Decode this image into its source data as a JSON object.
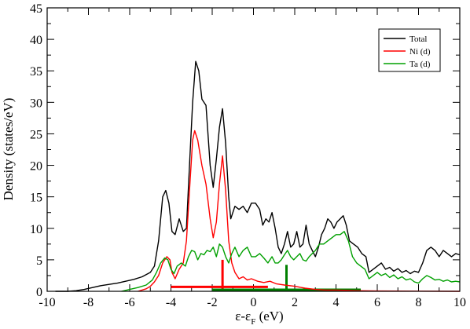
{
  "chart_data": {
    "type": "line",
    "xlim": [
      -10,
      10
    ],
    "ylim": [
      0,
      45
    ],
    "x_ticks": [
      -10,
      -8,
      -6,
      -4,
      -2,
      0,
      2,
      4,
      6,
      8,
      10
    ],
    "y_ticks": [
      0,
      5,
      10,
      15,
      20,
      25,
      30,
      35,
      40,
      45
    ],
    "xlabel": {
      "main": "ε-ε",
      "sub": "F",
      "tail": " (eV)"
    },
    "ylabel": "Density (states/eV)",
    "grid": false,
    "legend_position": "top-right",
    "series": [
      {
        "name": "Total",
        "color": "#000000",
        "points": [
          [
            -9.6,
            0
          ],
          [
            -9,
            0
          ],
          [
            -8.6,
            0.1
          ],
          [
            -8.2,
            0.3
          ],
          [
            -7.8,
            0.6
          ],
          [
            -7.4,
            0.9
          ],
          [
            -7.0,
            1.1
          ],
          [
            -6.6,
            1.3
          ],
          [
            -6.2,
            1.6
          ],
          [
            -5.8,
            1.9
          ],
          [
            -5.4,
            2.3
          ],
          [
            -5.0,
            3.0
          ],
          [
            -4.8,
            4.0
          ],
          [
            -4.6,
            8.0
          ],
          [
            -4.4,
            15.0
          ],
          [
            -4.25,
            16.0
          ],
          [
            -4.1,
            14.0
          ],
          [
            -3.95,
            9.5
          ],
          [
            -3.8,
            9.0
          ],
          [
            -3.6,
            11.5
          ],
          [
            -3.4,
            9.5
          ],
          [
            -3.25,
            10.0
          ],
          [
            -3.1,
            20.0
          ],
          [
            -2.95,
            30.0
          ],
          [
            -2.8,
            36.5
          ],
          [
            -2.65,
            35.0
          ],
          [
            -2.5,
            30.5
          ],
          [
            -2.3,
            29.5
          ],
          [
            -2.1,
            20.0
          ],
          [
            -1.95,
            16.5
          ],
          [
            -1.8,
            21.0
          ],
          [
            -1.65,
            26.0
          ],
          [
            -1.5,
            29.0
          ],
          [
            -1.35,
            23.5
          ],
          [
            -1.2,
            15.0
          ],
          [
            -1.1,
            11.5
          ],
          [
            -0.9,
            13.5
          ],
          [
            -0.7,
            13.0
          ],
          [
            -0.5,
            13.5
          ],
          [
            -0.3,
            12.5
          ],
          [
            -0.1,
            14.0
          ],
          [
            0.1,
            14.0
          ],
          [
            0.3,
            13.0
          ],
          [
            0.45,
            10.5
          ],
          [
            0.6,
            11.5
          ],
          [
            0.75,
            11.0
          ],
          [
            0.9,
            12.5
          ],
          [
            1.05,
            10.0
          ],
          [
            1.2,
            7.0
          ],
          [
            1.35,
            6.0
          ],
          [
            1.5,
            7.5
          ],
          [
            1.65,
            9.5
          ],
          [
            1.8,
            7.0
          ],
          [
            1.95,
            7.5
          ],
          [
            2.1,
            9.5
          ],
          [
            2.25,
            7.0
          ],
          [
            2.4,
            7.5
          ],
          [
            2.55,
            10.5
          ],
          [
            2.7,
            7.5
          ],
          [
            2.85,
            6.5
          ],
          [
            3.0,
            5.5
          ],
          [
            3.15,
            7.0
          ],
          [
            3.3,
            9.0
          ],
          [
            3.45,
            10.0
          ],
          [
            3.6,
            11.5
          ],
          [
            3.75,
            11.0
          ],
          [
            3.9,
            10.0
          ],
          [
            4.05,
            11.0
          ],
          [
            4.2,
            11.5
          ],
          [
            4.35,
            12.0
          ],
          [
            4.5,
            10.5
          ],
          [
            4.65,
            8.0
          ],
          [
            4.85,
            7.5
          ],
          [
            5.05,
            7.0
          ],
          [
            5.25,
            6.0
          ],
          [
            5.45,
            5.5
          ],
          [
            5.6,
            3.0
          ],
          [
            5.8,
            3.5
          ],
          [
            6.0,
            4.0
          ],
          [
            6.2,
            4.5
          ],
          [
            6.4,
            3.5
          ],
          [
            6.6,
            3.8
          ],
          [
            6.8,
            3.2
          ],
          [
            7.0,
            3.6
          ],
          [
            7.2,
            3.0
          ],
          [
            7.4,
            3.3
          ],
          [
            7.6,
            2.8
          ],
          [
            7.8,
            3.2
          ],
          [
            8.0,
            3.0
          ],
          [
            8.2,
            4.5
          ],
          [
            8.4,
            6.5
          ],
          [
            8.6,
            7.0
          ],
          [
            8.8,
            6.5
          ],
          [
            9.0,
            5.5
          ],
          [
            9.2,
            6.5
          ],
          [
            9.4,
            6.0
          ],
          [
            9.6,
            5.5
          ],
          [
            9.8,
            6.0
          ],
          [
            10.0,
            5.8
          ]
        ]
      },
      {
        "name": "Ni (d)",
        "color": "#ff0000",
        "points": [
          [
            -5.6,
            0
          ],
          [
            -5.2,
            0.4
          ],
          [
            -5.0,
            0.8
          ],
          [
            -4.8,
            1.5
          ],
          [
            -4.6,
            2.5
          ],
          [
            -4.4,
            4.5
          ],
          [
            -4.2,
            5.5
          ],
          [
            -4.05,
            5.0
          ],
          [
            -3.95,
            3.0
          ],
          [
            -3.8,
            2.0
          ],
          [
            -3.6,
            3.5
          ],
          [
            -3.4,
            4.5
          ],
          [
            -3.25,
            8.0
          ],
          [
            -3.1,
            16.0
          ],
          [
            -2.95,
            24.0
          ],
          [
            -2.85,
            25.5
          ],
          [
            -2.7,
            24.0
          ],
          [
            -2.5,
            20.0
          ],
          [
            -2.3,
            17.0
          ],
          [
            -2.1,
            11.5
          ],
          [
            -1.95,
            8.5
          ],
          [
            -1.8,
            11.0
          ],
          [
            -1.65,
            17.0
          ],
          [
            -1.5,
            21.5
          ],
          [
            -1.35,
            16.0
          ],
          [
            -1.2,
            8.0
          ],
          [
            -1.05,
            4.5
          ],
          [
            -0.9,
            3.0
          ],
          [
            -0.7,
            2.0
          ],
          [
            -0.5,
            2.3
          ],
          [
            -0.3,
            1.8
          ],
          [
            -0.1,
            2.0
          ],
          [
            0.2,
            1.6
          ],
          [
            0.5,
            1.4
          ],
          [
            0.8,
            1.6
          ],
          [
            1.1,
            1.2
          ],
          [
            1.5,
            1.0
          ],
          [
            2.0,
            0.8
          ],
          [
            2.5,
            0.5
          ],
          [
            3.0,
            0.3
          ],
          [
            3.5,
            0.2
          ],
          [
            4.0,
            0.2
          ],
          [
            5.0,
            0.1
          ],
          [
            6.0,
            0.05
          ],
          [
            8.0,
            0.02
          ],
          [
            10.0,
            0
          ]
        ]
      },
      {
        "name": "Ta (d)",
        "color": "#00a000",
        "points": [
          [
            -6.4,
            0
          ],
          [
            -6.0,
            0.3
          ],
          [
            -5.6,
            0.6
          ],
          [
            -5.2,
            1.0
          ],
          [
            -4.9,
            1.8
          ],
          [
            -4.7,
            3.0
          ],
          [
            -4.5,
            4.5
          ],
          [
            -4.3,
            5.3
          ],
          [
            -4.15,
            5.0
          ],
          [
            -4.0,
            3.5
          ],
          [
            -3.85,
            2.8
          ],
          [
            -3.7,
            4.0
          ],
          [
            -3.5,
            4.5
          ],
          [
            -3.3,
            4.0
          ],
          [
            -3.15,
            5.5
          ],
          [
            -3.0,
            6.5
          ],
          [
            -2.85,
            6.3
          ],
          [
            -2.7,
            5.0
          ],
          [
            -2.55,
            6.0
          ],
          [
            -2.4,
            5.8
          ],
          [
            -2.25,
            6.5
          ],
          [
            -2.1,
            6.3
          ],
          [
            -1.95,
            7.0
          ],
          [
            -1.8,
            5.5
          ],
          [
            -1.65,
            7.5
          ],
          [
            -1.5,
            7.0
          ],
          [
            -1.35,
            5.5
          ],
          [
            -1.2,
            4.5
          ],
          [
            -1.05,
            6.0
          ],
          [
            -0.9,
            7.0
          ],
          [
            -0.7,
            5.5
          ],
          [
            -0.5,
            6.5
          ],
          [
            -0.3,
            7.0
          ],
          [
            -0.1,
            5.5
          ],
          [
            0.1,
            5.5
          ],
          [
            0.3,
            6.0
          ],
          [
            0.5,
            5.3
          ],
          [
            0.7,
            4.5
          ],
          [
            0.9,
            5.5
          ],
          [
            1.05,
            4.5
          ],
          [
            1.2,
            4.5
          ],
          [
            1.35,
            5.0
          ],
          [
            1.5,
            5.8
          ],
          [
            1.65,
            6.5
          ],
          [
            1.8,
            5.5
          ],
          [
            1.95,
            5.0
          ],
          [
            2.1,
            5.5
          ],
          [
            2.25,
            6.0
          ],
          [
            2.4,
            5.0
          ],
          [
            2.55,
            4.8
          ],
          [
            2.7,
            5.5
          ],
          [
            2.85,
            6.0
          ],
          [
            3.0,
            6.5
          ],
          [
            3.2,
            7.5
          ],
          [
            3.4,
            7.5
          ],
          [
            3.6,
            8.0
          ],
          [
            3.8,
            8.5
          ],
          [
            4.0,
            9.0
          ],
          [
            4.2,
            9.0
          ],
          [
            4.4,
            9.5
          ],
          [
            4.6,
            8.0
          ],
          [
            4.8,
            5.5
          ],
          [
            5.0,
            4.5
          ],
          [
            5.2,
            4.0
          ],
          [
            5.4,
            3.5
          ],
          [
            5.6,
            2.0
          ],
          [
            5.8,
            2.5
          ],
          [
            6.0,
            3.0
          ],
          [
            6.2,
            2.5
          ],
          [
            6.4,
            2.8
          ],
          [
            6.6,
            2.2
          ],
          [
            6.8,
            2.6
          ],
          [
            7.0,
            2.0
          ],
          [
            7.2,
            2.3
          ],
          [
            7.4,
            1.8
          ],
          [
            7.6,
            2.0
          ],
          [
            7.8,
            1.5
          ],
          [
            8.0,
            1.3
          ],
          [
            8.2,
            2.0
          ],
          [
            8.4,
            2.5
          ],
          [
            8.6,
            2.2
          ],
          [
            8.8,
            1.8
          ],
          [
            9.0,
            1.9
          ],
          [
            9.2,
            1.6
          ],
          [
            9.4,
            1.8
          ],
          [
            9.6,
            1.5
          ],
          [
            9.8,
            1.6
          ],
          [
            10.0,
            1.5
          ]
        ]
      }
    ],
    "markers": [
      {
        "series": "Ni (d)",
        "color": "#ff0000",
        "x": -1.5,
        "y_top": 5.0,
        "x_start": -4.0,
        "x_end": 0.7,
        "y_level": 0.7
      },
      {
        "series": "Ta (d)",
        "color": "#008000",
        "x": 1.6,
        "y_top": 4.2,
        "x_start": -2.0,
        "x_end": 5.2,
        "y_level": 0.25
      }
    ]
  }
}
